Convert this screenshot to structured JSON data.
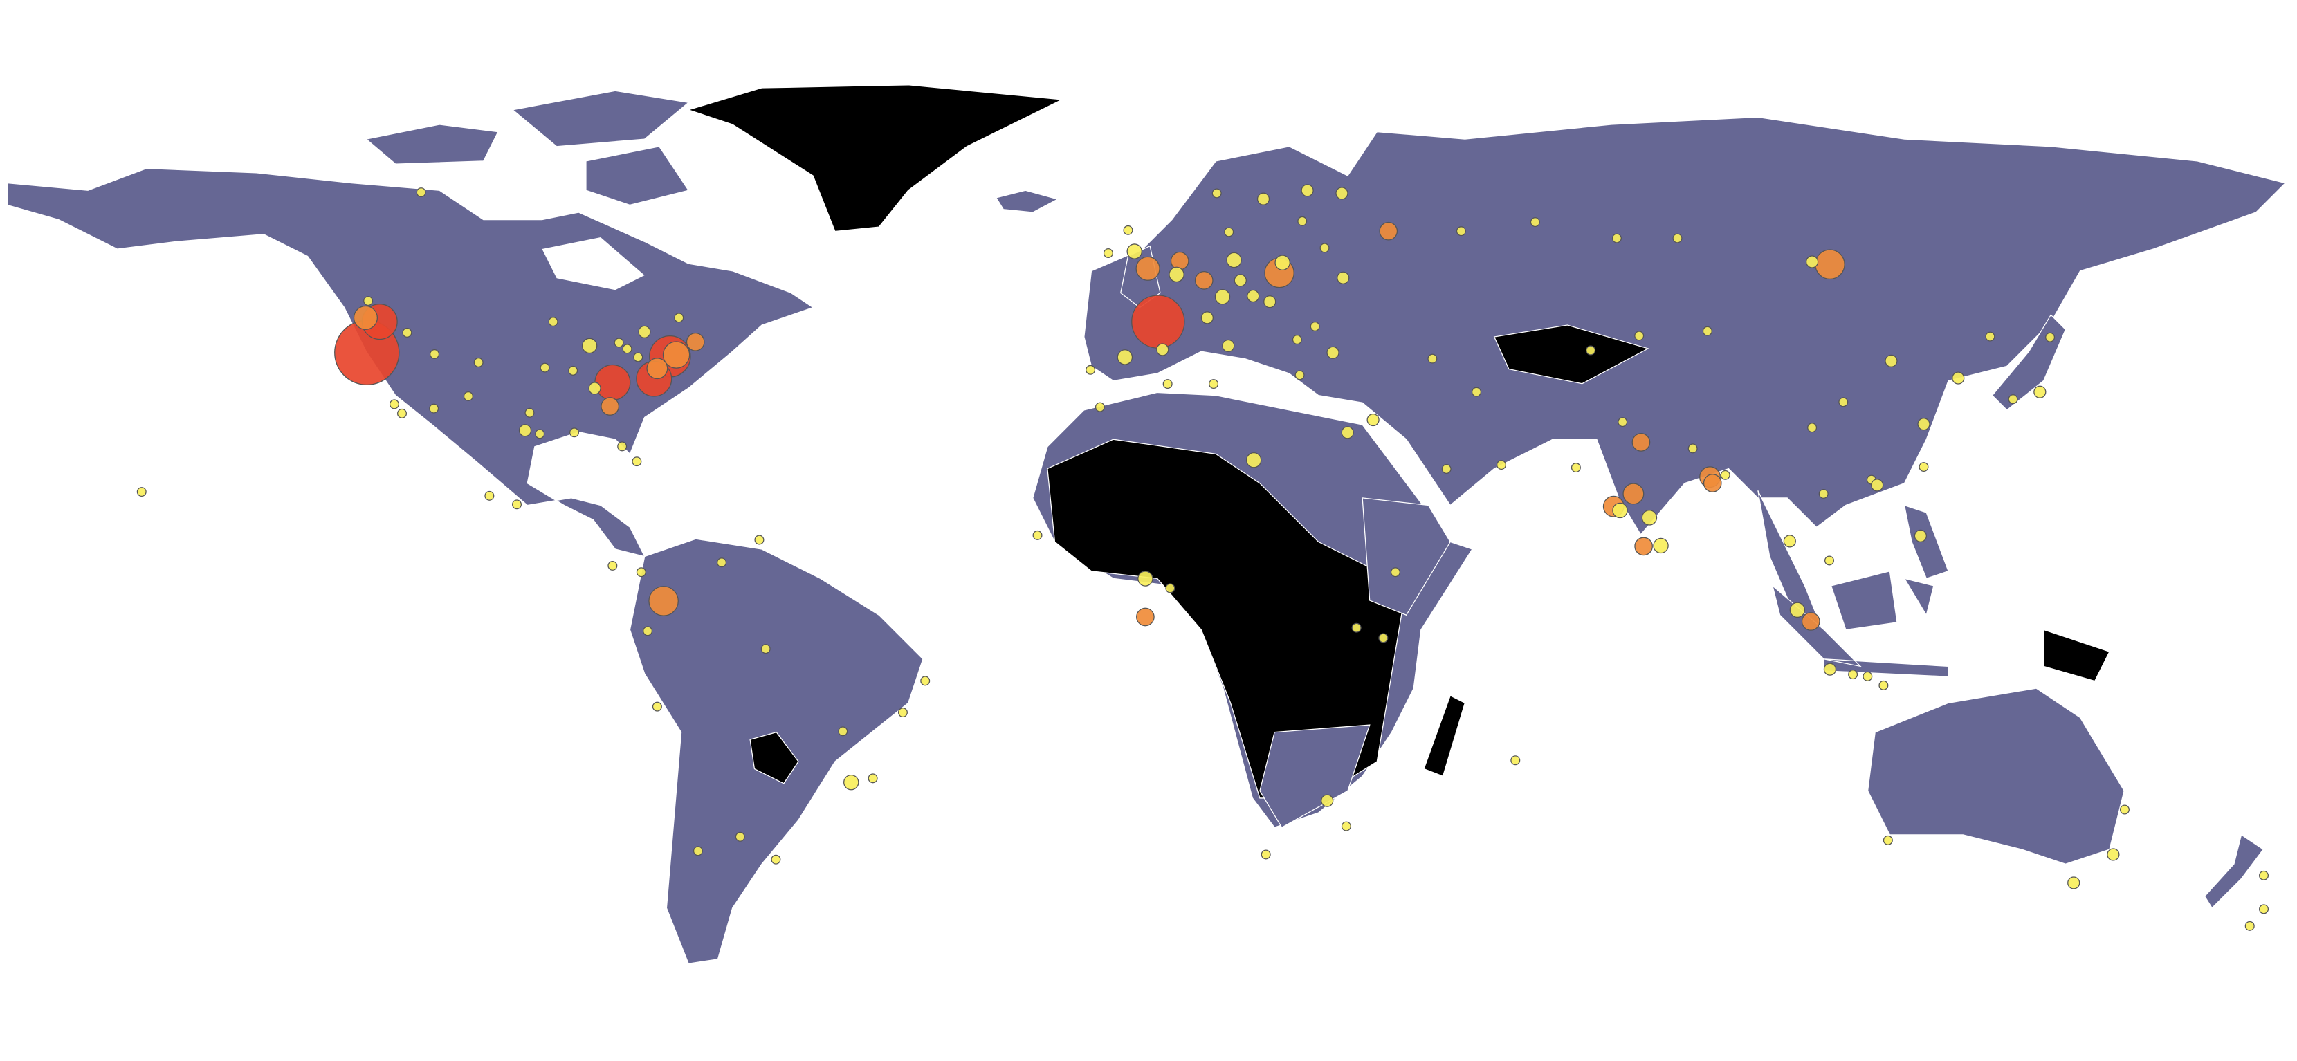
{
  "chart_data": {
    "type": "bubble-map",
    "x": [
      -122.5,
      -120.5,
      1.5,
      20.5,
      106.8,
      -76,
      -75,
      -77.5,
      -84,
      -0.5,
      -0.5,
      16.5,
      76,
      88,
      -122.3,
      -118.2,
      -117,
      -112,
      -105,
      -97,
      -95.4,
      -90,
      -87.6,
      -83,
      -81.7,
      -80,
      -79,
      -73.6,
      -71,
      -74,
      -77,
      -80.2,
      -82.5,
      -84.4,
      -86.8,
      -90.2,
      -93.3,
      -94.6,
      -97.7,
      -106.6,
      -111.9,
      -116.2,
      -122.7,
      -114,
      -157.8,
      -99,
      -103.3,
      -79.5,
      -84,
      -66.9,
      -61,
      -78.5,
      -77,
      -70.6,
      -58.4,
      -47.9,
      -46.6,
      -43.2,
      -38.5,
      -35,
      -60,
      -64,
      -0.1,
      -2.2,
      -3.2,
      -6.3,
      -3.7,
      2.2,
      -9.1,
      4.9,
      4.4,
      8.7,
      13.4,
      11.6,
      16.4,
      14.4,
      12.5,
      9.2,
      18,
      10.7,
      12.6,
      24.9,
      21,
      19,
      26.1,
      23.3,
      23.7,
      28.9,
      30.5,
      37.6,
      30.3,
      27.6,
      24.1,
      49,
      60.6,
      82.9,
      73.4,
      104,
      131.9,
      35.2,
      44.5,
      51.4,
      55.3,
      46.7,
      31.2,
      3,
      -7.6,
      10.2,
      -17.4,
      3.4,
      36.8,
      38.7,
      32.6,
      28,
      18.4,
      31,
      57.5,
      67,
      74.3,
      77.2,
      72.9,
      73.9,
      77.6,
      80.3,
      78.5,
      88.4,
      85.3,
      90.4,
      100.5,
      106.7,
      105.8,
      101.7,
      103.8,
      106.8,
      112.7,
      110.4,
      115.2,
      121,
      116.4,
      121.5,
      113.3,
      114.2,
      104,
      108.9,
      126.9,
      139.7,
      135.5,
      141.3,
      121.5,
      87.6,
      76.9,
      69.3,
      151.2,
      145,
      153,
      115.9,
      174.8,
      174.8,
      172.6
    ],
    "values": [
      41,
      45,
      45,
      51,
      52,
      4.5,
      40.5,
      37.5,
      37,
      2,
      8,
      26,
      21,
      23.5,
      47.6,
      34,
      32.7,
      33.4,
      39.7,
      32.8,
      29.8,
      30,
      41.9,
      42.3,
      41.5,
      40.4,
      43.7,
      45.5,
      42.4,
      40.7,
      38.9,
      25.8,
      28,
      33.7,
      36.2,
      38.6,
      45,
      39,
      30.3,
      35.1,
      40.8,
      43.6,
      45.5,
      60,
      21.3,
      19.4,
      20.7,
      9,
      10,
      10.5,
      14,
      -0.2,
      -12,
      -33.4,
      -34.6,
      -15.8,
      -23.5,
      -22.9,
      -12.9,
      -8,
      -3,
      -31.4,
      51.5,
      53.5,
      55.9,
      53.3,
      40.4,
      41.4,
      38.7,
      52.4,
      50.8,
      50.1,
      52.5,
      48.1,
      48.2,
      50.1,
      41.9,
      45.5,
      59.3,
      59.9,
      55.7,
      60.2,
      52.2,
      47.5,
      44.4,
      42.7,
      38,
      41,
      50.4,
      55.8,
      59.9,
      53.9,
      56.9,
      55.8,
      56.8,
      55,
      55,
      52.3,
      43.1,
      31.8,
      40.2,
      35.7,
      25.3,
      24.7,
      30,
      36.8,
      33.6,
      36.8,
      14.7,
      6.5,
      -1.3,
      9,
      0.3,
      -26.2,
      -33.9,
      -29.9,
      -20.2,
      24.9,
      31.5,
      28.6,
      19.1,
      18.5,
      13,
      13.1,
      17.4,
      22.6,
      27.7,
      23.8,
      13.8,
      10.8,
      21,
      3.1,
      1.3,
      -6.2,
      -7.3,
      -7,
      -8.7,
      14.6,
      39.9,
      31.2,
      23.1,
      22.3,
      30.7,
      34.3,
      37.6,
      35.7,
      34.7,
      43,
      25,
      43.8,
      43.2,
      41.3,
      -33.9,
      -37.8,
      -27.5,
      -31.9,
      -36.8,
      -41.3,
      -43.5
    ],
    "sizes": [
      22,
      12,
      18,
      10,
      10,
      10,
      14,
      12,
      12,
      6,
      5,
      5,
      7,
      7,
      3,
      3,
      3,
      3,
      3,
      3,
      3,
      3,
      5,
      3,
      3,
      3,
      4,
      3,
      6,
      9,
      7,
      3,
      3,
      6,
      4,
      3,
      3,
      3,
      4,
      3,
      3,
      3,
      8,
      3,
      3,
      3,
      3,
      3,
      3,
      3,
      3,
      3,
      3,
      3,
      3,
      3,
      5,
      3,
      3,
      3,
      3,
      3,
      8,
      5,
      3,
      3,
      5,
      4,
      3,
      6,
      5,
      6,
      5,
      5,
      4,
      4,
      4,
      4,
      4,
      3,
      3,
      4,
      5,
      4,
      3,
      3,
      3,
      4,
      4,
      6,
      4,
      3,
      3,
      3,
      3,
      3,
      3,
      4,
      3,
      4,
      3,
      3,
      3,
      3,
      4,
      3,
      3,
      3,
      3,
      3,
      3,
      3,
      3,
      4,
      3,
      3,
      3,
      3,
      3,
      6,
      7,
      5,
      6,
      5,
      5,
      6,
      3,
      3,
      4,
      3,
      3,
      5,
      6,
      4,
      3,
      3,
      3,
      4,
      4,
      4,
      3,
      4,
      3,
      3,
      4,
      4,
      3,
      3,
      3,
      3,
      3,
      3,
      4,
      4,
      3,
      3,
      3,
      3,
      3
    ]
  }
}
